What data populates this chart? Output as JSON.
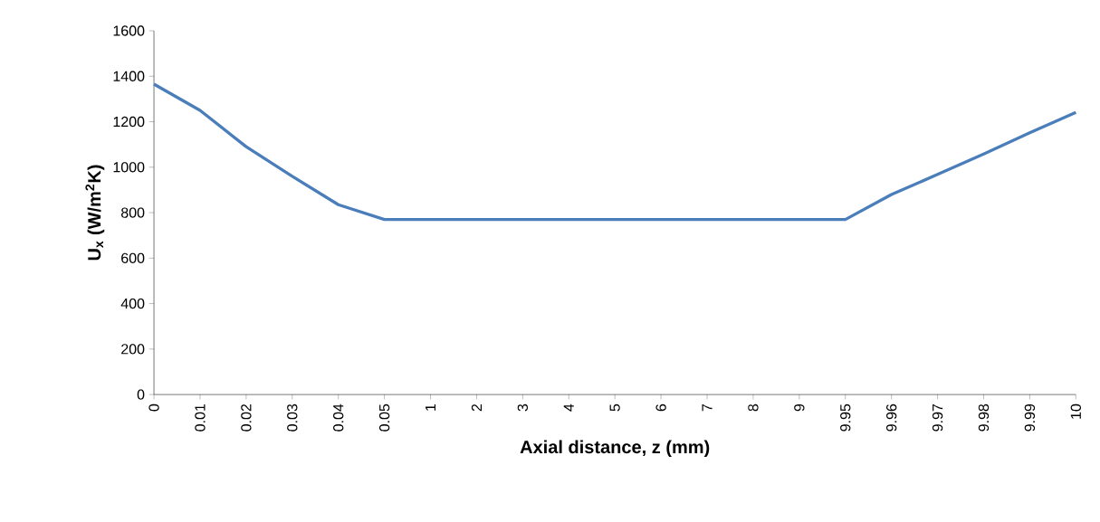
{
  "chart_data": {
    "type": "line",
    "xlabel": "Axial distance, z (mm)",
    "ylabel": "U$_{x}$ (W/m$^{2}$K)",
    "categories": [
      "0",
      "0.01",
      "0.02",
      "0.03",
      "0.04",
      "0.05",
      "1",
      "2",
      "3",
      "4",
      "5",
      "6",
      "7",
      "8",
      "9",
      "9.95",
      "9.96",
      "9.97",
      "9.98",
      "9.99",
      "10"
    ],
    "values": [
      1365,
      1250,
      1090,
      960,
      835,
      770,
      770,
      770,
      770,
      770,
      770,
      770,
      770,
      770,
      770,
      770,
      880,
      968,
      1058,
      1151,
      1241
    ],
    "color": "#4a7ebb",
    "ylim": [
      0,
      1600
    ],
    "yticks": [
      0,
      200,
      400,
      600,
      800,
      1000,
      1200,
      1400,
      1600
    ],
    "marker": "none",
    "line_style": "solid"
  }
}
